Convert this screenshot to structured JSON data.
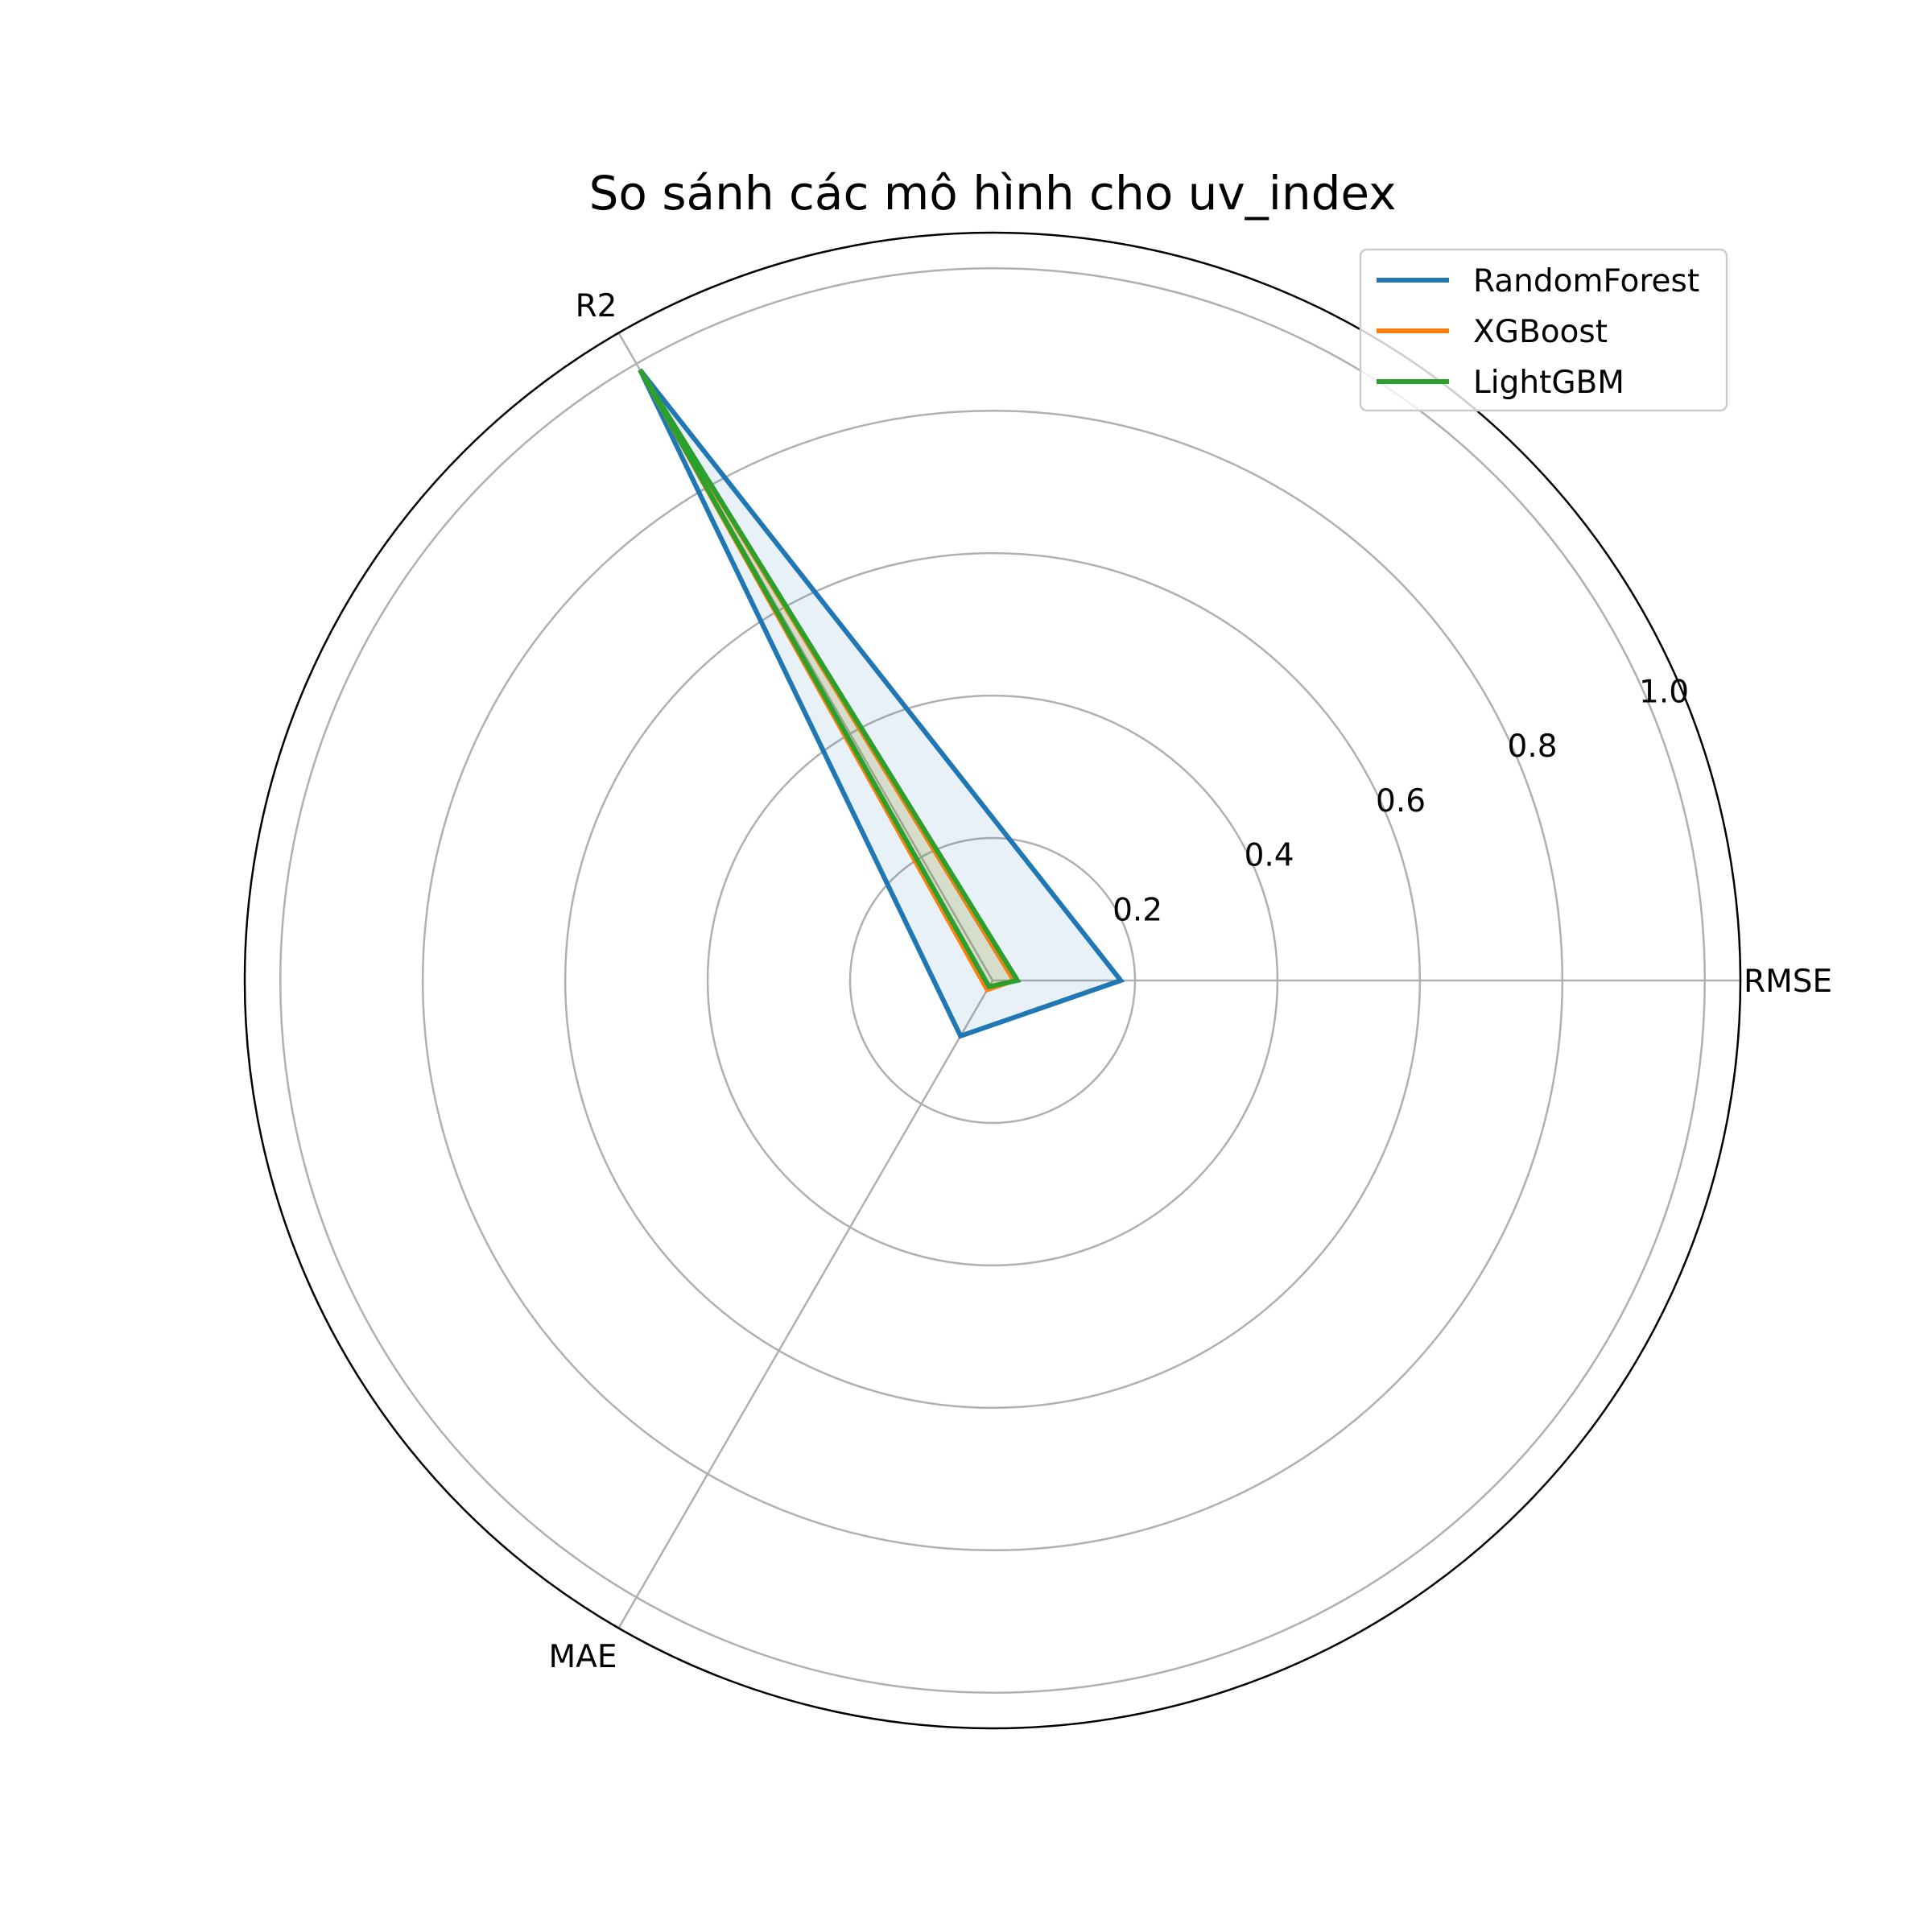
{
  "chart_data": {
    "type": "radar",
    "title": "So sánh các mô hình cho uv_index",
    "axes": [
      "RMSE",
      "R2",
      "MAE"
    ],
    "rlim": [
      0,
      1.05
    ],
    "radial_ticks": [
      0.2,
      0.4,
      0.6,
      0.8,
      1.0
    ],
    "radial_tick_labels": [
      "0.2",
      "0.4",
      "0.6",
      "0.8",
      "1.0"
    ],
    "grid": true,
    "legend_position": "top-right",
    "series": [
      {
        "name": "RandomForest",
        "color": "#1f77b4",
        "values": [
          0.18,
          0.99,
          0.09
        ],
        "fill_opacity": 0.1
      },
      {
        "name": "XGBoost",
        "color": "#ff7f0e",
        "values": [
          0.03,
          0.99,
          0.015
        ],
        "fill_opacity": 0.1
      },
      {
        "name": "LightGBM",
        "color": "#2ca02c",
        "values": [
          0.035,
          0.99,
          0.01
        ],
        "fill_opacity": 0.1
      }
    ]
  }
}
